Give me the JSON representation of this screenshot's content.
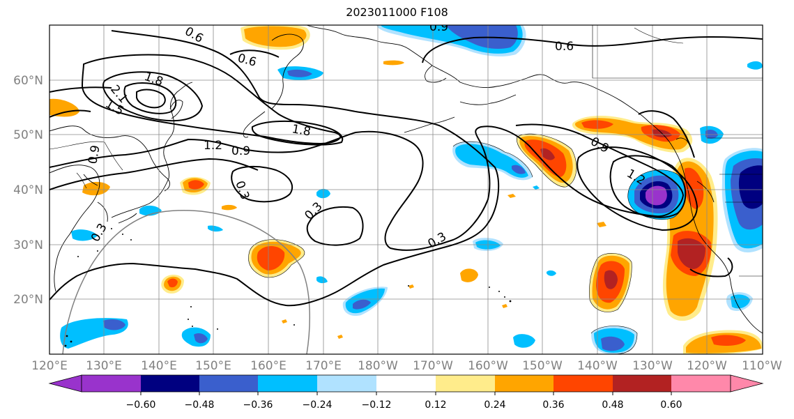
{
  "title": "2023011000 F108",
  "lat_labels": [
    "60°N",
    "50°N",
    "40°N",
    "30°N",
    "20°N"
  ],
  "lon_labels": [
    "120°E",
    "130°E",
    "140°E",
    "150°E",
    "160°E",
    "170°E",
    "180°W",
    "170°W",
    "160°W",
    "150°W",
    "140°W",
    "130°W",
    "120°W",
    "110°W"
  ],
  "contour_labels": [
    "0.6",
    "0.6",
    "0.6",
    "0.9",
    "1.8",
    "1.5",
    "2.1",
    "1.8",
    "1.2",
    "0.9",
    "0.9",
    "0.3",
    "0.3",
    "0.3",
    "0.9",
    "1.2",
    "0.3"
  ],
  "colorbar": {
    "colors": [
      "#9933cc",
      "#000080",
      "#3a5fcd",
      "#00bfff",
      "#b0e2ff",
      "#ffffff",
      "#ffec8b",
      "#ffa500",
      "#ff4500",
      "#b22222",
      "#ff88aa"
    ],
    "tick_labels": [
      "−0.60",
      "−0.48",
      "−0.36",
      "−0.24",
      "−0.12",
      "0.12",
      "0.24",
      "0.36",
      "0.48",
      "0.60"
    ]
  }
}
